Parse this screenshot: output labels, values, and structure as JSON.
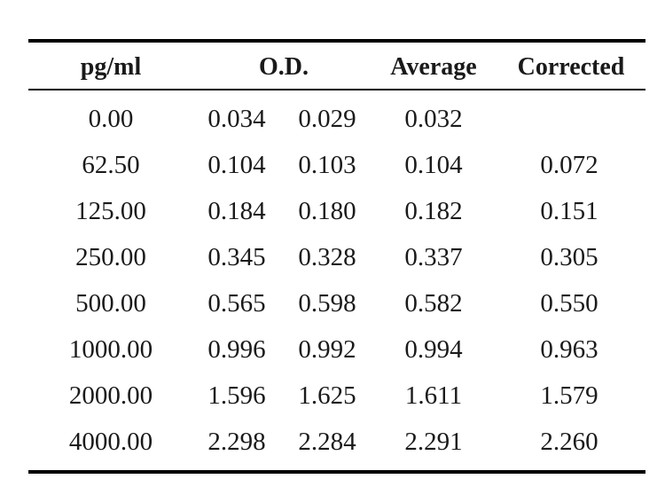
{
  "table": {
    "headers": {
      "pgml": "pg/ml",
      "od": "O.D.",
      "average": "Average",
      "corrected": "Corrected"
    },
    "rows": [
      {
        "pgml": "0.00",
        "od1": "0.034",
        "od2": "0.029",
        "average": "0.032",
        "corrected": ""
      },
      {
        "pgml": "62.50",
        "od1": "0.104",
        "od2": "0.103",
        "average": "0.104",
        "corrected": "0.072"
      },
      {
        "pgml": "125.00",
        "od1": "0.184",
        "od2": "0.180",
        "average": "0.182",
        "corrected": "0.151"
      },
      {
        "pgml": "250.00",
        "od1": "0.345",
        "od2": "0.328",
        "average": "0.337",
        "corrected": "0.305"
      },
      {
        "pgml": "500.00",
        "od1": "0.565",
        "od2": "0.598",
        "average": "0.582",
        "corrected": "0.550"
      },
      {
        "pgml": "1000.00",
        "od1": "0.996",
        "od2": "0.992",
        "average": "0.994",
        "corrected": "0.963"
      },
      {
        "pgml": "2000.00",
        "od1": "1.596",
        "od2": "1.625",
        "average": "1.611",
        "corrected": "1.579"
      },
      {
        "pgml": "4000.00",
        "od1": "2.298",
        "od2": "2.284",
        "average": "2.291",
        "corrected": "2.260"
      }
    ]
  }
}
